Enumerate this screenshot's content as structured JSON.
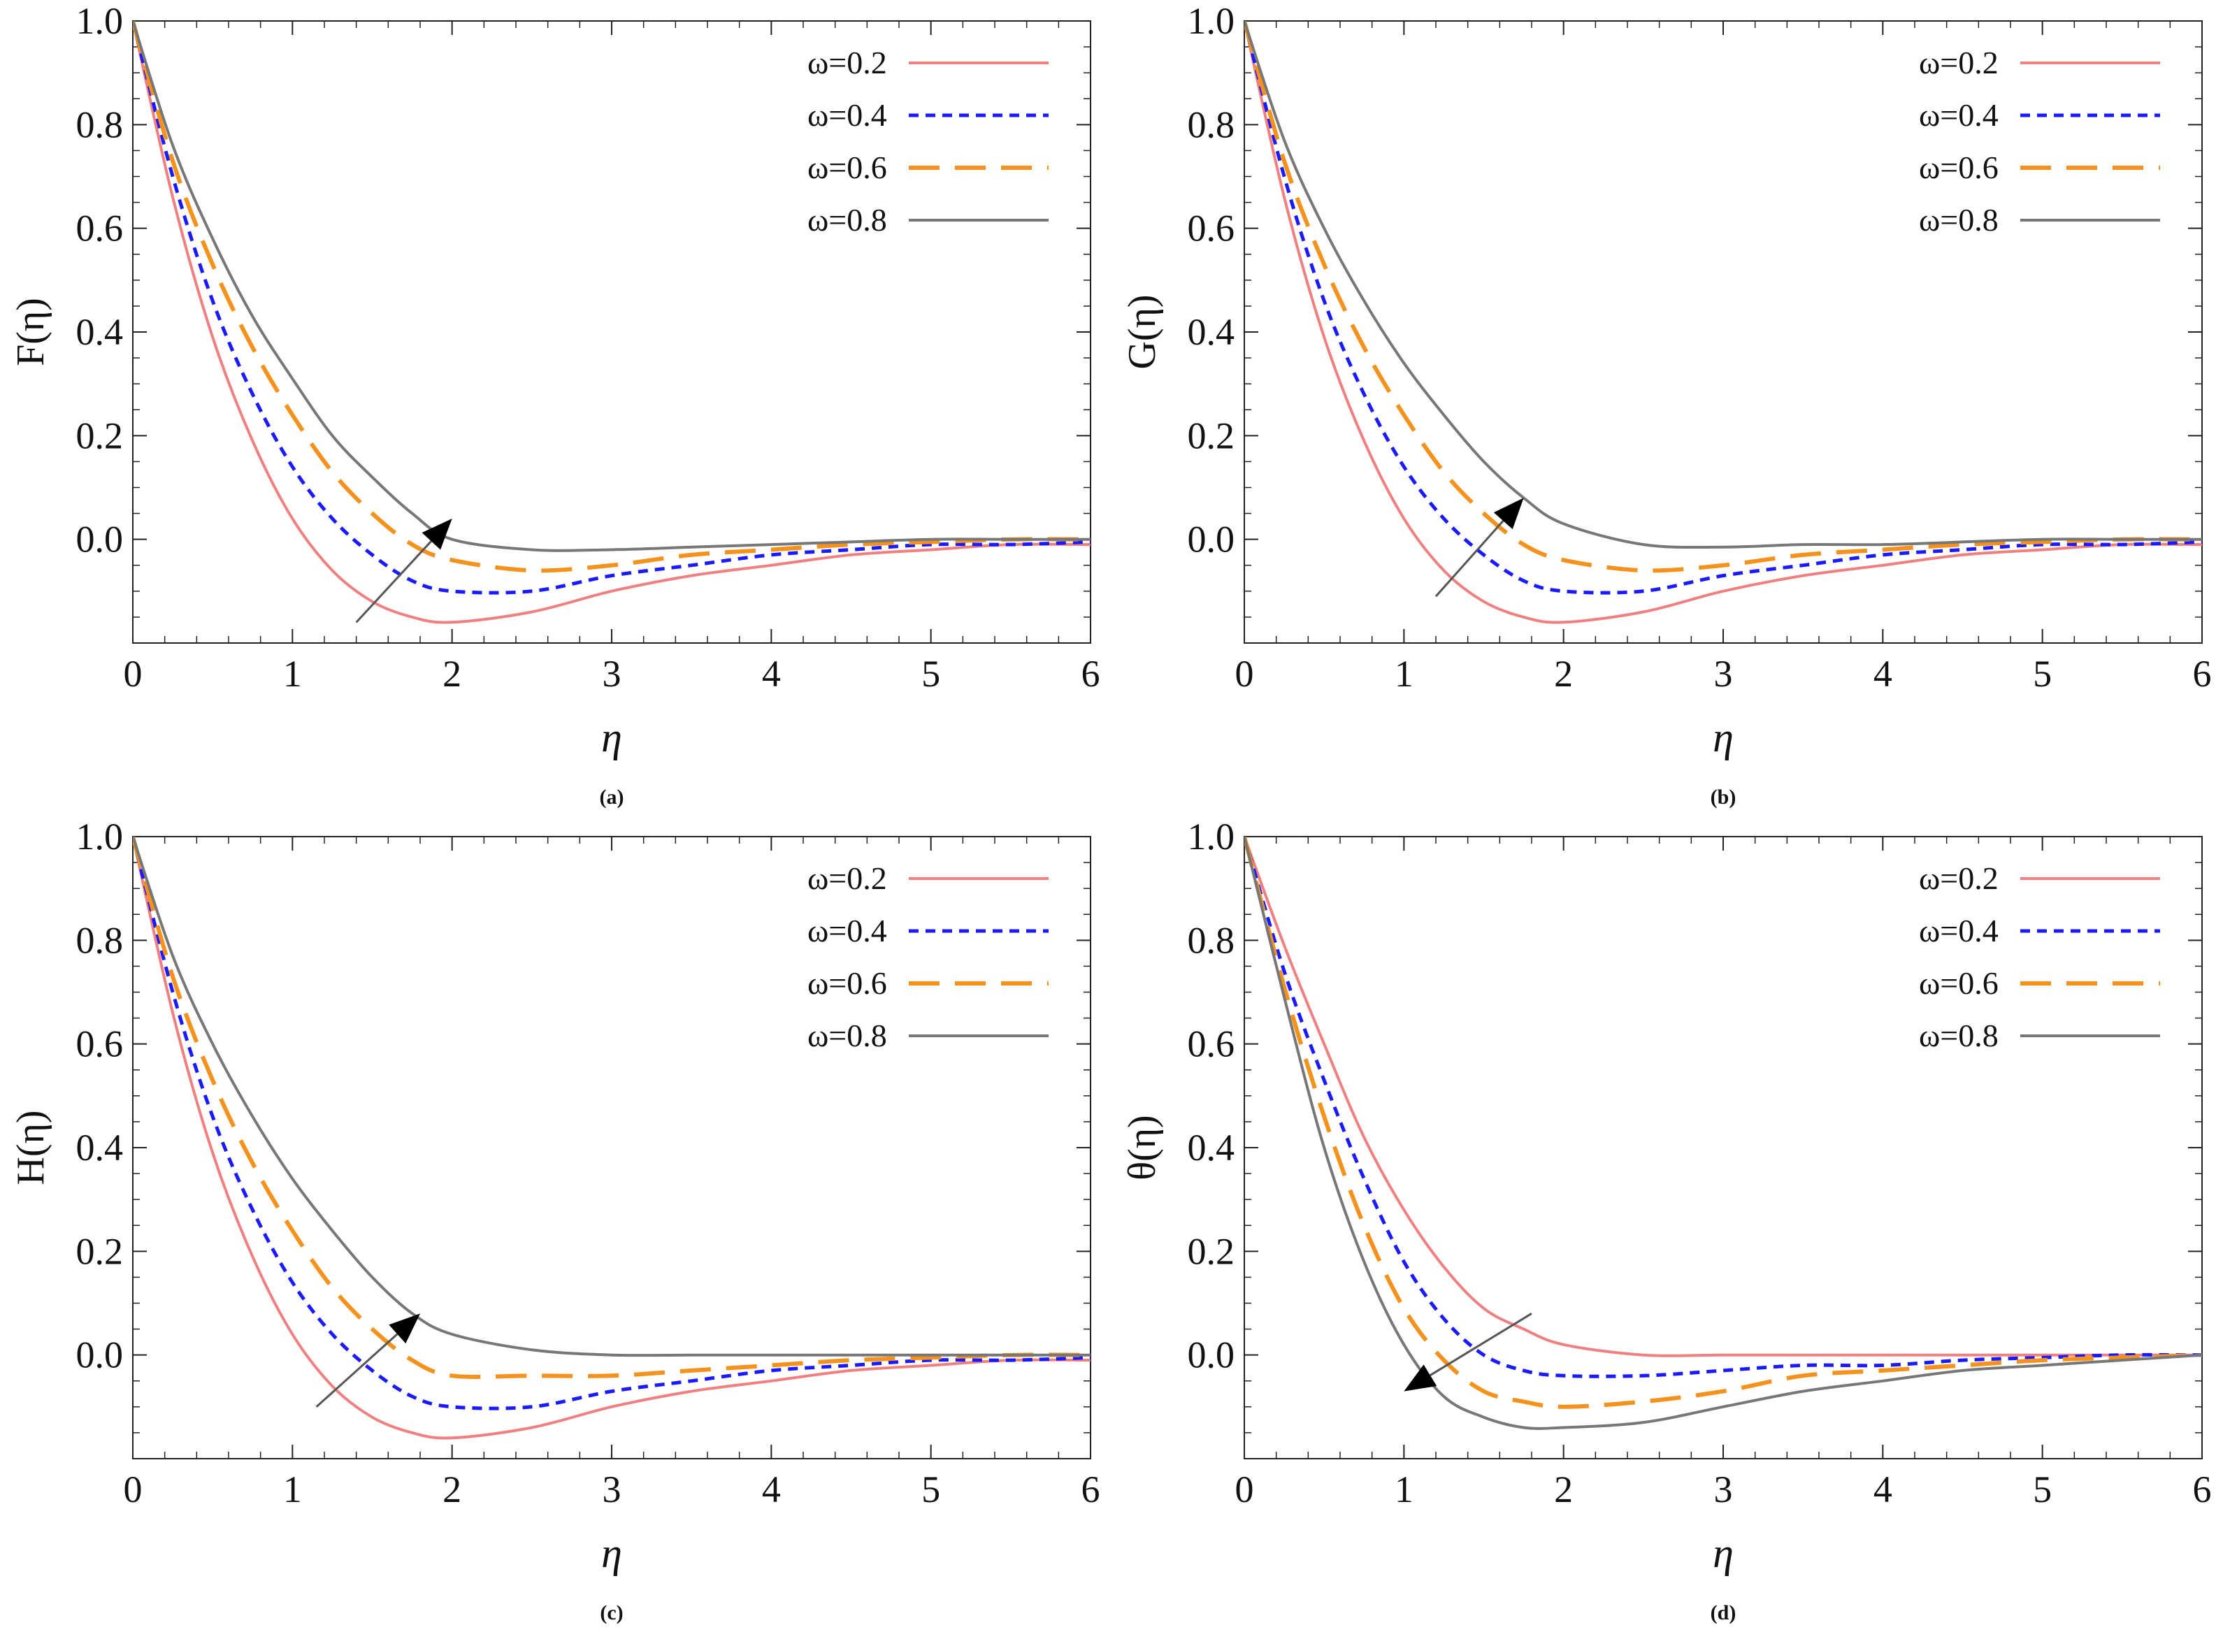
{
  "chart_data": [
    {
      "id": "a",
      "type": "line",
      "caption": "(a)",
      "xlabel": "η",
      "ylabel": "F(η)",
      "xlim": [
        0,
        6
      ],
      "ylim": [
        -0.2,
        1.0
      ],
      "xticks": [
        0,
        1,
        2,
        3,
        4,
        5,
        6
      ],
      "xtick_labels": [
        "0",
        "1",
        "2",
        "3",
        "4",
        "5",
        "6"
      ],
      "yticks": [
        0.0,
        0.2,
        0.4,
        0.6,
        0.8,
        1.0
      ],
      "ytick_labels": [
        "0.0",
        "0.2",
        "0.4",
        "0.6",
        "0.8",
        "1.0"
      ],
      "legend_position": "top-right",
      "series": [
        {
          "name": "ω=0.2",
          "color": "#f08080",
          "style": "solid",
          "x": [
            0,
            0.25,
            0.5,
            0.75,
            1,
            1.25,
            1.5,
            1.75,
            2,
            2.5,
            3,
            3.5,
            4,
            4.5,
            5,
            5.5,
            6
          ],
          "y": [
            1.0,
            0.66,
            0.39,
            0.19,
            0.04,
            -0.06,
            -0.12,
            -0.15,
            -0.16,
            -0.14,
            -0.1,
            -0.07,
            -0.05,
            -0.03,
            -0.02,
            -0.01,
            -0.01
          ]
        },
        {
          "name": "ω=0.4",
          "color": "#1a1aff",
          "style": "dotted",
          "x": [
            0,
            0.25,
            0.5,
            0.75,
            1,
            1.25,
            1.5,
            1.75,
            2,
            2.5,
            3,
            3.5,
            4,
            4.5,
            5,
            5.5,
            6
          ],
          "y": [
            1.0,
            0.7,
            0.46,
            0.28,
            0.14,
            0.04,
            -0.03,
            -0.08,
            -0.1,
            -0.1,
            -0.07,
            -0.05,
            -0.03,
            -0.02,
            -0.01,
            -0.01,
            -0.005
          ]
        },
        {
          "name": "ω=0.6",
          "color": "#f5921e",
          "style": "dashed",
          "x": [
            0,
            0.25,
            0.5,
            0.75,
            1,
            1.25,
            1.5,
            1.75,
            2,
            2.5,
            3,
            3.5,
            4,
            4.5,
            5,
            5.5,
            6
          ],
          "y": [
            1.0,
            0.73,
            0.53,
            0.37,
            0.24,
            0.13,
            0.05,
            -0.01,
            -0.04,
            -0.06,
            -0.05,
            -0.03,
            -0.02,
            -0.01,
            -0.005,
            0.0,
            0.0
          ]
        },
        {
          "name": "ω=0.8",
          "color": "#777777",
          "style": "solid",
          "x": [
            0,
            0.25,
            0.5,
            0.75,
            1,
            1.25,
            1.5,
            1.75,
            2,
            2.5,
            3,
            3.5,
            4,
            4.5,
            5,
            5.5,
            6
          ],
          "y": [
            1.0,
            0.76,
            0.58,
            0.43,
            0.31,
            0.2,
            0.12,
            0.05,
            0.0,
            -0.02,
            -0.02,
            -0.015,
            -0.01,
            -0.005,
            0.0,
            0.0,
            0.0
          ]
        }
      ],
      "annotation_arrow": {
        "from": [
          1.4,
          -0.16
        ],
        "to": [
          2.0,
          0.04
        ],
        "direction": "increasing ω"
      }
    },
    {
      "id": "b",
      "type": "line",
      "caption": "(b)",
      "xlabel": "η",
      "ylabel": "G(η)",
      "xlim": [
        0,
        6
      ],
      "ylim": [
        -0.2,
        1.0
      ],
      "xticks": [
        0,
        1,
        2,
        3,
        4,
        5,
        6
      ],
      "xtick_labels": [
        "0",
        "1",
        "2",
        "3",
        "4",
        "5",
        "6"
      ],
      "yticks": [
        0.0,
        0.2,
        0.4,
        0.6,
        0.8,
        1.0
      ],
      "ytick_labels": [
        "0.0",
        "0.2",
        "0.4",
        "0.6",
        "0.8",
        "1.0"
      ],
      "legend_position": "top-right",
      "series": [
        {
          "name": "ω=0.2",
          "color": "#f08080",
          "style": "solid",
          "x": [
            0,
            0.25,
            0.5,
            0.75,
            1,
            1.25,
            1.5,
            1.75,
            2,
            2.5,
            3,
            3.5,
            4,
            4.5,
            5,
            5.5,
            6
          ],
          "y": [
            1.0,
            0.66,
            0.39,
            0.19,
            0.04,
            -0.06,
            -0.12,
            -0.15,
            -0.16,
            -0.14,
            -0.1,
            -0.07,
            -0.05,
            -0.03,
            -0.02,
            -0.01,
            -0.01
          ]
        },
        {
          "name": "ω=0.4",
          "color": "#1a1aff",
          "style": "dotted",
          "x": [
            0,
            0.25,
            0.5,
            0.75,
            1,
            1.25,
            1.5,
            1.75,
            2,
            2.5,
            3,
            3.5,
            4,
            4.5,
            5,
            5.5,
            6
          ],
          "y": [
            1.0,
            0.7,
            0.46,
            0.28,
            0.14,
            0.04,
            -0.03,
            -0.08,
            -0.1,
            -0.1,
            -0.07,
            -0.05,
            -0.03,
            -0.02,
            -0.01,
            -0.01,
            -0.005
          ]
        },
        {
          "name": "ω=0.6",
          "color": "#f5921e",
          "style": "dashed",
          "x": [
            0,
            0.25,
            0.5,
            0.75,
            1,
            1.25,
            1.5,
            1.75,
            2,
            2.5,
            3,
            3.5,
            4,
            4.5,
            5,
            5.5,
            6
          ],
          "y": [
            1.0,
            0.73,
            0.53,
            0.37,
            0.24,
            0.13,
            0.05,
            -0.01,
            -0.04,
            -0.06,
            -0.05,
            -0.03,
            -0.02,
            -0.01,
            -0.005,
            0.0,
            0.0
          ]
        },
        {
          "name": "ω=0.8",
          "color": "#777777",
          "style": "solid",
          "x": [
            0,
            0.25,
            0.5,
            0.75,
            1,
            1.25,
            1.5,
            1.75,
            2,
            2.5,
            3,
            3.5,
            4,
            4.5,
            5,
            5.5,
            6
          ],
          "y": [
            1.0,
            0.77,
            0.6,
            0.46,
            0.34,
            0.24,
            0.15,
            0.08,
            0.03,
            -0.01,
            -0.015,
            -0.01,
            -0.01,
            -0.005,
            0.0,
            0.0,
            0.0
          ]
        }
      ],
      "annotation_arrow": {
        "from": [
          1.2,
          -0.11
        ],
        "to": [
          1.75,
          0.08
        ],
        "direction": "increasing ω"
      }
    },
    {
      "id": "c",
      "type": "line",
      "caption": "(c)",
      "xlabel": "η",
      "ylabel": "H(η)",
      "xlim": [
        0,
        6
      ],
      "ylim": [
        -0.2,
        1.0
      ],
      "xticks": [
        0,
        1,
        2,
        3,
        4,
        5,
        6
      ],
      "xtick_labels": [
        "0",
        "1",
        "2",
        "3",
        "4",
        "5",
        "6"
      ],
      "yticks": [
        0.0,
        0.2,
        0.4,
        0.6,
        0.8,
        1.0
      ],
      "ytick_labels": [
        "0.0",
        "0.2",
        "0.4",
        "0.6",
        "0.8",
        "1.0"
      ],
      "legend_position": "top-right",
      "series": [
        {
          "name": "ω=0.2",
          "color": "#f08080",
          "style": "solid",
          "x": [
            0,
            0.25,
            0.5,
            0.75,
            1,
            1.25,
            1.5,
            1.75,
            2,
            2.5,
            3,
            3.5,
            4,
            4.5,
            5,
            5.5,
            6
          ],
          "y": [
            1.0,
            0.66,
            0.39,
            0.19,
            0.04,
            -0.06,
            -0.12,
            -0.15,
            -0.16,
            -0.14,
            -0.1,
            -0.07,
            -0.05,
            -0.03,
            -0.02,
            -0.01,
            -0.01
          ]
        },
        {
          "name": "ω=0.4",
          "color": "#1a1aff",
          "style": "dotted",
          "x": [
            0,
            0.25,
            0.5,
            0.75,
            1,
            1.25,
            1.5,
            1.75,
            2,
            2.5,
            3,
            3.5,
            4,
            4.5,
            5,
            5.5,
            6
          ],
          "y": [
            1.0,
            0.7,
            0.46,
            0.28,
            0.14,
            0.04,
            -0.03,
            -0.08,
            -0.1,
            -0.1,
            -0.07,
            -0.05,
            -0.03,
            -0.02,
            -0.01,
            -0.01,
            -0.005
          ]
        },
        {
          "name": "ω=0.6",
          "color": "#f5921e",
          "style": "dashed",
          "x": [
            0,
            0.25,
            0.5,
            0.75,
            1,
            1.25,
            1.5,
            1.75,
            2,
            2.5,
            3,
            3.5,
            4,
            4.5,
            5,
            5.5,
            6
          ],
          "y": [
            1.0,
            0.73,
            0.53,
            0.37,
            0.24,
            0.13,
            0.05,
            -0.01,
            -0.04,
            -0.04,
            -0.04,
            -0.03,
            -0.02,
            -0.01,
            -0.005,
            0.0,
            0.0
          ]
        },
        {
          "name": "ω=0.8",
          "color": "#777777",
          "style": "solid",
          "x": [
            0,
            0.25,
            0.5,
            0.75,
            1,
            1.25,
            1.5,
            1.75,
            2,
            2.5,
            3,
            3.5,
            4,
            4.5,
            5,
            5.5,
            6
          ],
          "y": [
            1.0,
            0.77,
            0.6,
            0.46,
            0.34,
            0.24,
            0.15,
            0.08,
            0.04,
            0.01,
            0.0,
            0.0,
            0.0,
            0.0,
            0.0,
            0.0,
            0.0
          ]
        }
      ],
      "annotation_arrow": {
        "from": [
          1.15,
          -0.1
        ],
        "to": [
          1.8,
          0.08
        ],
        "direction": "increasing ω"
      }
    },
    {
      "id": "d",
      "type": "line",
      "caption": "(d)",
      "xlabel": "η",
      "ylabel": "θ(η)",
      "xlim": [
        0,
        6
      ],
      "ylim": [
        -0.2,
        1.0
      ],
      "xticks": [
        0,
        1,
        2,
        3,
        4,
        5,
        6
      ],
      "xtick_labels": [
        "0",
        "1",
        "2",
        "3",
        "4",
        "5",
        "6"
      ],
      "yticks": [
        0.0,
        0.2,
        0.4,
        0.6,
        0.8,
        1.0
      ],
      "ytick_labels": [
        "0.0",
        "0.2",
        "0.4",
        "0.6",
        "0.8",
        "1.0"
      ],
      "legend_position": "top-right",
      "series": [
        {
          "name": "ω=0.2",
          "color": "#f08080",
          "style": "solid",
          "x": [
            0,
            0.25,
            0.5,
            0.75,
            1,
            1.25,
            1.5,
            1.75,
            2,
            2.5,
            3,
            3.5,
            4,
            4.5,
            5,
            5.5,
            6
          ],
          "y": [
            1.0,
            0.79,
            0.6,
            0.42,
            0.28,
            0.17,
            0.09,
            0.05,
            0.02,
            0.0,
            0.0,
            0.0,
            0.0,
            0.0,
            0.0,
            0.0,
            0.0
          ]
        },
        {
          "name": "ω=0.4",
          "color": "#1a1aff",
          "style": "dotted",
          "x": [
            0,
            0.25,
            0.5,
            0.75,
            1,
            1.25,
            1.5,
            1.75,
            2,
            2.5,
            3,
            3.5,
            4,
            4.5,
            5,
            5.5,
            6
          ],
          "y": [
            1.0,
            0.74,
            0.53,
            0.34,
            0.18,
            0.07,
            0.0,
            -0.03,
            -0.04,
            -0.04,
            -0.03,
            -0.02,
            -0.02,
            -0.01,
            -0.005,
            0.0,
            0.0
          ]
        },
        {
          "name": "ω=0.6",
          "color": "#f5921e",
          "style": "dashed",
          "x": [
            0,
            0.25,
            0.5,
            0.75,
            1,
            1.25,
            1.5,
            1.75,
            2,
            2.5,
            3,
            3.5,
            4,
            4.5,
            5,
            5.5,
            6
          ],
          "y": [
            1.0,
            0.71,
            0.46,
            0.25,
            0.09,
            -0.01,
            -0.07,
            -0.09,
            -0.1,
            -0.09,
            -0.07,
            -0.04,
            -0.03,
            -0.02,
            -0.01,
            -0.005,
            0.0
          ]
        },
        {
          "name": "ω=0.8",
          "color": "#777777",
          "style": "solid",
          "x": [
            0,
            0.25,
            0.5,
            0.75,
            1,
            1.25,
            1.5,
            1.75,
            2,
            2.5,
            3,
            3.5,
            4,
            4.5,
            5,
            5.5,
            6
          ],
          "y": [
            1.0,
            0.69,
            0.4,
            0.18,
            0.02,
            -0.08,
            -0.12,
            -0.14,
            -0.14,
            -0.13,
            -0.1,
            -0.07,
            -0.05,
            -0.03,
            -0.02,
            -0.01,
            0.0
          ]
        }
      ],
      "annotation_arrow": {
        "from": [
          1.8,
          0.08
        ],
        "to": [
          1.0,
          -0.07
        ],
        "direction": "increasing ω"
      }
    }
  ]
}
